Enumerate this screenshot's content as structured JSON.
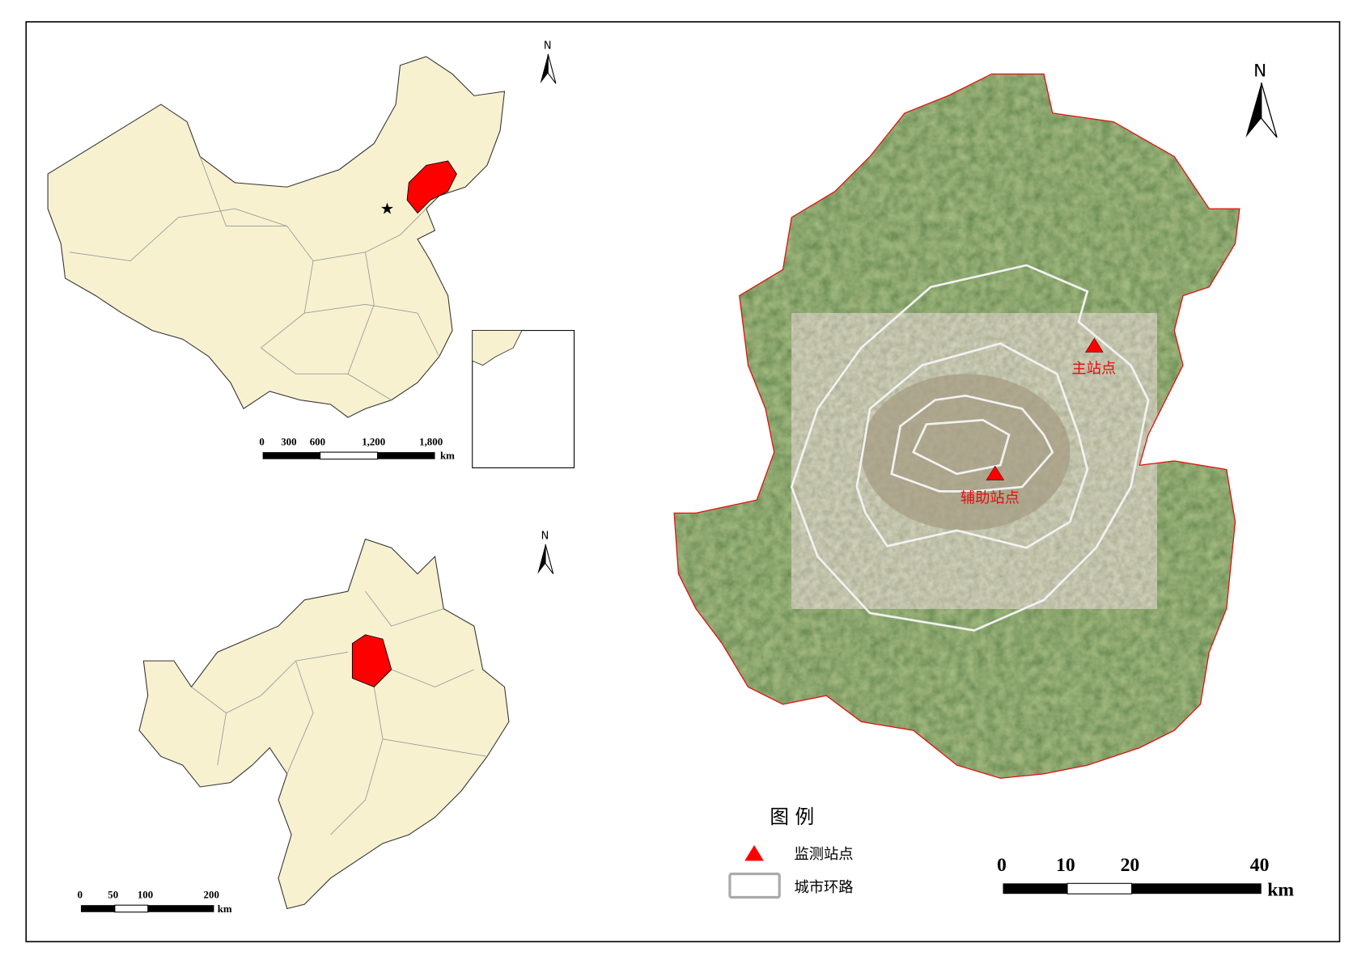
{
  "colors": {
    "highlight": "#ff0000",
    "land": "#f7f1d0",
    "ring_road": "#f2f2f2",
    "vegetation": "#3f5f2a",
    "station_marker": "#ff0000"
  },
  "north_label": "N",
  "china_map": {
    "scale_labels": [
      "0",
      "300",
      "600",
      "1,200",
      "1,800"
    ],
    "scale_unit": "km",
    "capital_marker": "star-icon"
  },
  "province_map": {
    "scale_labels": [
      "0",
      "50",
      "100",
      "200"
    ],
    "scale_unit": "km"
  },
  "city_map": {
    "stations": [
      {
        "label": "主站点"
      },
      {
        "label": "辅助站点"
      }
    ],
    "scale_labels": [
      "0",
      "10",
      "20",
      "40"
    ],
    "scale_unit": "km"
  },
  "legend": {
    "title": "图 例",
    "items": [
      {
        "symbol": "red-triangle",
        "label": "监测站点"
      },
      {
        "symbol": "gray-outline-rect",
        "label": "城市环路"
      }
    ]
  }
}
